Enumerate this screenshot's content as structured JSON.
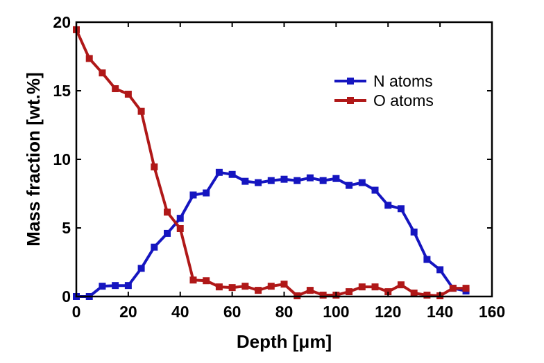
{
  "chart_data": {
    "type": "line",
    "title": "",
    "xlabel": "Depth [μm]",
    "ylabel": "Mass fraction [wt.%]",
    "xlim": [
      0,
      160
    ],
    "ylim": [
      0,
      20
    ],
    "x_ticks": [
      0,
      20,
      40,
      60,
      80,
      100,
      120,
      140,
      160
    ],
    "y_ticks": [
      0,
      5,
      10,
      15,
      20
    ],
    "grid": false,
    "legend_position": "top-right",
    "series": [
      {
        "name": "N atoms",
        "color": "#1515c0",
        "marker": "square",
        "x": [
          0,
          5,
          10,
          15,
          20,
          25,
          30,
          35,
          40,
          45,
          50,
          55,
          60,
          65,
          70,
          75,
          80,
          85,
          90,
          95,
          100,
          105,
          110,
          115,
          120,
          125,
          130,
          135,
          140,
          145,
          150
        ],
        "y": [
          0.0,
          0.0,
          0.75,
          0.8,
          0.8,
          2.05,
          3.6,
          4.6,
          5.7,
          7.4,
          7.55,
          9.05,
          8.9,
          8.4,
          8.3,
          8.45,
          8.55,
          8.45,
          8.65,
          8.45,
          8.6,
          8.1,
          8.3,
          7.75,
          6.65,
          6.4,
          4.7,
          2.7,
          1.95,
          0.6,
          0.4
        ]
      },
      {
        "name": "O atoms",
        "color": "#b01818",
        "marker": "square",
        "x": [
          0,
          5,
          10,
          15,
          20,
          25,
          30,
          35,
          40,
          45,
          50,
          55,
          60,
          65,
          70,
          75,
          80,
          85,
          90,
          95,
          100,
          105,
          110,
          115,
          120,
          125,
          130,
          135,
          140,
          145,
          150
        ],
        "y": [
          19.45,
          17.35,
          16.3,
          15.15,
          14.75,
          13.5,
          9.45,
          6.15,
          4.95,
          1.2,
          1.15,
          0.7,
          0.65,
          0.75,
          0.45,
          0.75,
          0.9,
          0.05,
          0.45,
          0.1,
          0.1,
          0.35,
          0.7,
          0.7,
          0.35,
          0.85,
          0.25,
          0.1,
          0.05,
          0.6,
          0.6
        ]
      }
    ]
  }
}
